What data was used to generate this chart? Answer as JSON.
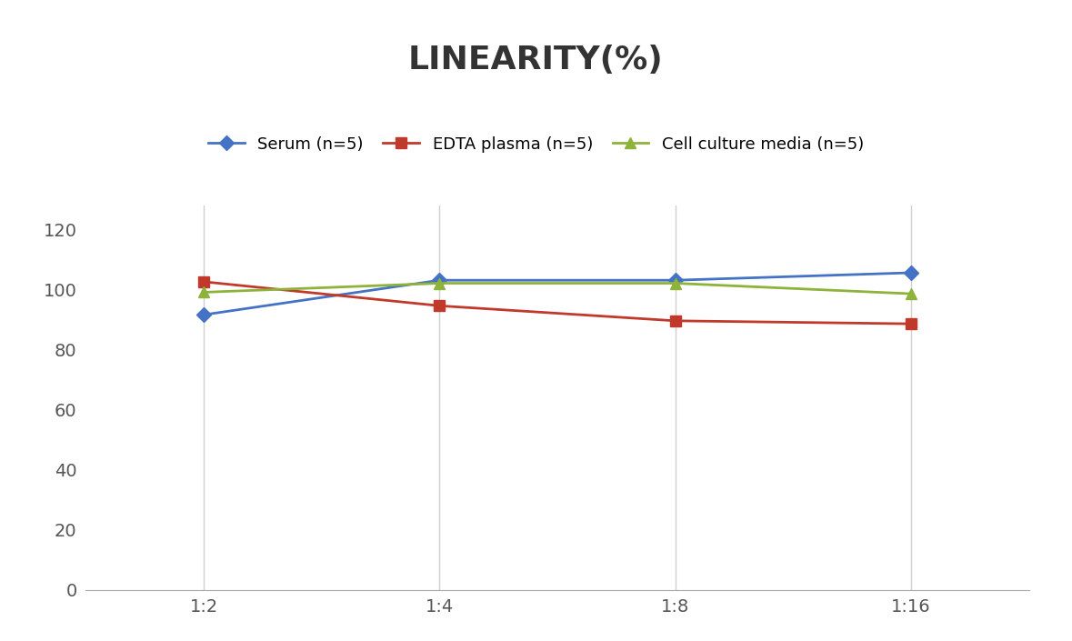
{
  "title": "LINEARITY(%)",
  "x_labels": [
    "1:2",
    "1:4",
    "1:8",
    "1:16"
  ],
  "x_positions": [
    0,
    1,
    2,
    3
  ],
  "series": [
    {
      "label": "Serum (n=5)",
      "values": [
        91.5,
        103.0,
        103.0,
        105.5
      ],
      "color": "#4472C4",
      "marker": "D",
      "markersize": 8,
      "linewidth": 2
    },
    {
      "label": "EDTA plasma (n=5)",
      "values": [
        102.5,
        94.5,
        89.5,
        88.5
      ],
      "color": "#C0392B",
      "marker": "s",
      "markersize": 8,
      "linewidth": 2
    },
    {
      "label": "Cell culture media (n=5)",
      "values": [
        99.0,
        102.0,
        102.0,
        98.5
      ],
      "color": "#8DB33A",
      "marker": "^",
      "markersize": 9,
      "linewidth": 2
    }
  ],
  "ylim": [
    0,
    128
  ],
  "yticks": [
    0,
    20,
    40,
    60,
    80,
    100,
    120
  ],
  "background_color": "#ffffff",
  "grid_color": "#d0d0d0",
  "title_fontsize": 26,
  "legend_fontsize": 13,
  "tick_fontsize": 14
}
